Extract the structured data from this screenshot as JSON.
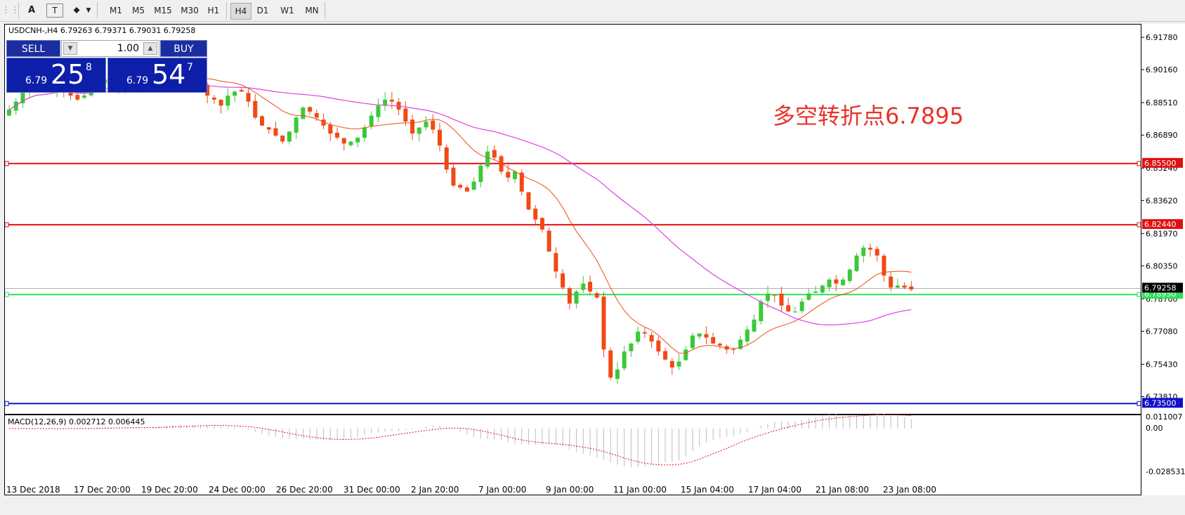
{
  "toolbar": {
    "buttons": [
      "A",
      "T",
      "⬥"
    ],
    "timeframes": [
      "M1",
      "M5",
      "M15",
      "M30",
      "H1",
      "H4",
      "D1",
      "W1",
      "MN"
    ]
  },
  "header": {
    "symbol_info": "USDCNH-,H4  6.79263 6.79371 6.79031 6.79258"
  },
  "trade_panel": {
    "sell_label": "SELL",
    "buy_label": "BUY",
    "lot": "1.00",
    "sell": {
      "small": "6.79",
      "big": "25",
      "sup": "8"
    },
    "buy": {
      "small": "6.79",
      "big": "54",
      "sup": "7"
    }
  },
  "annotation": "多空转折点6.7895",
  "price_scale": [
    "6.91780",
    "6.90160",
    "6.88510",
    "6.86890",
    "6.85240",
    "6.83620",
    "6.81970",
    "6.80350",
    "6.78700",
    "6.77080",
    "6.75430",
    "6.73810"
  ],
  "hlines": [
    {
      "price": 6.855,
      "label": "6.85500",
      "color": "#e01010"
    },
    {
      "price": 6.8244,
      "label": "6.82440",
      "color": "#e01010"
    },
    {
      "price": 6.7895,
      "label": "6.78950",
      "color": "#2ee05a"
    },
    {
      "price": 6.735,
      "label": "6.73500",
      "color": "#1010c8"
    }
  ],
  "current_price": {
    "price": 6.79258,
    "label": "6.79258"
  },
  "macd": {
    "label": "MACD(12,26,9) 0.002712 0.006445",
    "scale": [
      "0.011007",
      "0.00",
      "-0.028531"
    ]
  },
  "time_labels": [
    "13 Dec 2018",
    "17 Dec 20:00",
    "19 Dec 20:00",
    "24 Dec 00:00",
    "26 Dec 20:00",
    "31 Dec 00:00",
    "2 Jan 20:00",
    "7 Jan 00:00",
    "9 Jan 00:00",
    "11 Jan 00:00",
    "15 Jan 04:00",
    "17 Jan 04:00",
    "21 Jan 08:00",
    "23 Jan 08:00"
  ],
  "colors": {
    "bull": "#3ac93a",
    "bear": "#f04a14",
    "ma_fast": "#f04a14",
    "ma_slow": "#e040e0"
  },
  "chart_data": {
    "type": "candlestick",
    "symbol": "USDCNH-",
    "timeframe": "H4",
    "ylim": [
      6.7295,
      6.9245
    ],
    "close_path": [
      6.882,
      6.886,
      6.891,
      6.893,
      6.894,
      6.891,
      6.893,
      6.895,
      6.892,
      6.889,
      6.887,
      6.889,
      6.893,
      6.896,
      6.897,
      6.894,
      6.893,
      6.891,
      6.893,
      6.894,
      6.894,
      6.897,
      6.902,
      6.905,
      6.904,
      6.902,
      6.899,
      6.897,
      6.894,
      6.889,
      6.887,
      6.884,
      6.889,
      6.891,
      6.891,
      6.886,
      6.878,
      6.874,
      6.872,
      6.869,
      6.866,
      6.871,
      6.878,
      6.883,
      6.881,
      6.878,
      6.874,
      6.87,
      6.868,
      6.865,
      6.866,
      6.868,
      6.873,
      6.879,
      6.884,
      6.887,
      6.886,
      6.882,
      6.876,
      6.87,
      6.873,
      6.876,
      6.872,
      6.864,
      6.852,
      6.844,
      6.843,
      6.841,
      6.846,
      6.854,
      6.861,
      6.858,
      6.851,
      6.848,
      6.851,
      6.841,
      6.832,
      6.827,
      6.822,
      6.811,
      6.801,
      6.793,
      6.785,
      6.791,
      6.795,
      6.791,
      6.788,
      6.762,
      6.748,
      6.752,
      6.761,
      6.765,
      6.771,
      6.77,
      6.766,
      6.761,
      6.757,
      6.753,
      6.756,
      6.762,
      6.769,
      6.77,
      6.768,
      6.765,
      6.764,
      6.762,
      6.762,
      6.767,
      6.772,
      6.777,
      6.786,
      6.79,
      6.789,
      6.784,
      6.781,
      6.781,
      6.786,
      6.79,
      6.791,
      6.794,
      6.797,
      6.795,
      6.797,
      6.802,
      6.809,
      6.813,
      6.812,
      6.809,
      6.799,
      6.793,
      6.794,
      6.793,
      6.792
    ]
  }
}
